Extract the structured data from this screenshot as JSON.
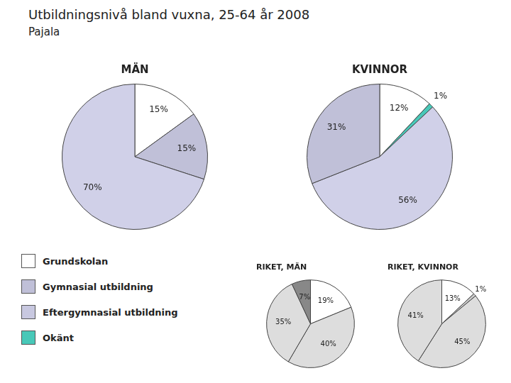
{
  "title": "Utbildningsnivå bland vuxna, 25-64 år 2008",
  "subtitle": "Pajala",
  "legend": "bottom-left",
  "series": [
    {
      "name": "Grundskolan",
      "color": "#ffffff"
    },
    {
      "name": "Gymnasial utbildning",
      "color": "#c0c0d8"
    },
    {
      "name": "Eftergymnasial utbildning",
      "color": "#c8c8e0"
    },
    {
      "name": "Okänt",
      "color": "#48c8b8"
    }
  ],
  "chart_data": [
    {
      "type": "pie",
      "title": "MÄN",
      "values": [
        15,
        15,
        70
      ],
      "value_labels": [
        "15%",
        "15%",
        "70%"
      ],
      "colors": [
        "#ffffff",
        "#c0c0d8",
        "#d0d0e8"
      ],
      "data_labels": true
    },
    {
      "type": "pie",
      "title": "KVINNOR",
      "values": [
        12,
        1,
        56,
        31
      ],
      "value_labels": [
        "12%",
        "1%",
        "56%",
        "31%"
      ],
      "colors": [
        "#ffffff",
        "#48c8b8",
        "#d0d0e8",
        "#c0c0d8"
      ],
      "data_labels": true
    },
    {
      "type": "pie",
      "title": "RIKET, MÄN",
      "values": [
        19,
        40,
        35,
        7
      ],
      "value_labels": [
        "19%",
        "40%",
        "35%",
        "7%"
      ],
      "colors": [
        "#ffffff",
        "#dddddd",
        "#dddddd",
        "#888888"
      ],
      "data_labels": true
    },
    {
      "type": "pie",
      "title": "RIKET, KVINNOR",
      "values": [
        13,
        1,
        45,
        41
      ],
      "value_labels": [
        "13%",
        "1%",
        "45%",
        "41%"
      ],
      "colors": [
        "#ffffff",
        "#cccccc",
        "#dddddd",
        "#dddddd"
      ],
      "data_labels": true
    }
  ]
}
